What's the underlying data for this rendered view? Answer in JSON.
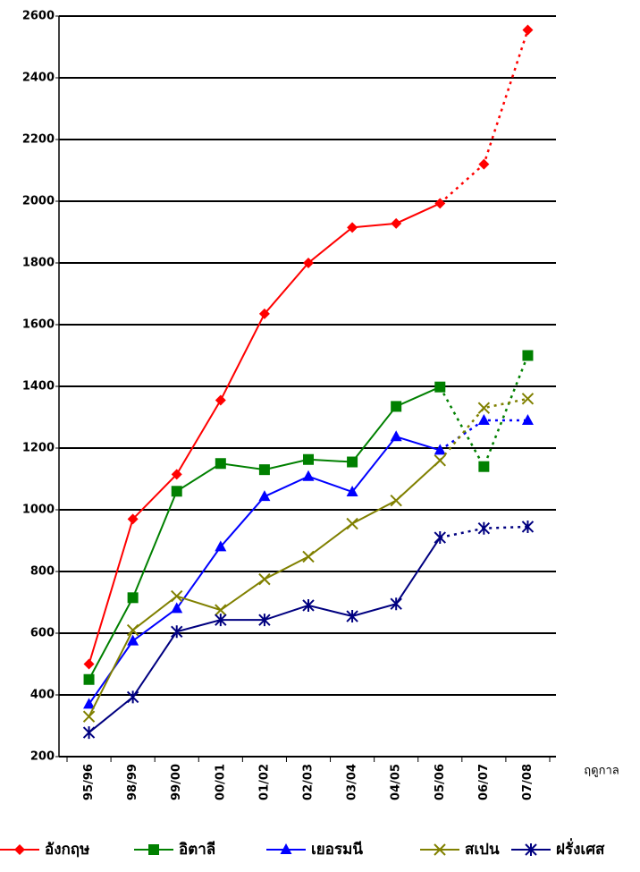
{
  "chart_data": {
    "type": "line",
    "x_label": "ฤดูกาล",
    "categories": [
      "95/96",
      "98/99",
      "99/00",
      "00/01",
      "01/02",
      "02/03",
      "03/04",
      "04/05",
      "05/06",
      "06/07",
      "07/08"
    ],
    "series": [
      {
        "name": "อังกฤษ",
        "color": "#ff0000",
        "marker": "diamond",
        "values": [
          500,
          970,
          1115,
          1355,
          1635,
          1800,
          1915,
          1928,
          1993,
          2120,
          2555
        ]
      },
      {
        "name": "อิตาลี",
        "color": "#008000",
        "marker": "square",
        "values": [
          450,
          715,
          1060,
          1150,
          1130,
          1163,
          1155,
          1335,
          1398,
          1140,
          1500
        ]
      },
      {
        "name": "เยอรมนี",
        "color": "#0000ff",
        "marker": "triangle",
        "values": [
          370,
          575,
          680,
          880,
          1043,
          1108,
          1058,
          1237,
          1193,
          1290,
          1290
        ]
      },
      {
        "name": "สเปน",
        "color": "#808000",
        "marker": "x",
        "values": [
          330,
          610,
          720,
          675,
          775,
          848,
          955,
          1030,
          1160,
          1330,
          1360
        ]
      },
      {
        "name": "ฝรั่งเศส",
        "color": "#000080",
        "marker": "asterisk",
        "values": [
          278,
          393,
          605,
          643,
          643,
          690,
          655,
          695,
          910,
          940,
          945
        ]
      }
    ],
    "dashed_from": 8,
    "ylim": [
      200,
      2600
    ],
    "yticks": [
      200,
      400,
      600,
      800,
      1000,
      1200,
      1400,
      1600,
      1800,
      2000,
      2200,
      2400,
      2600
    ],
    "grid": true,
    "legend": "bottom"
  }
}
